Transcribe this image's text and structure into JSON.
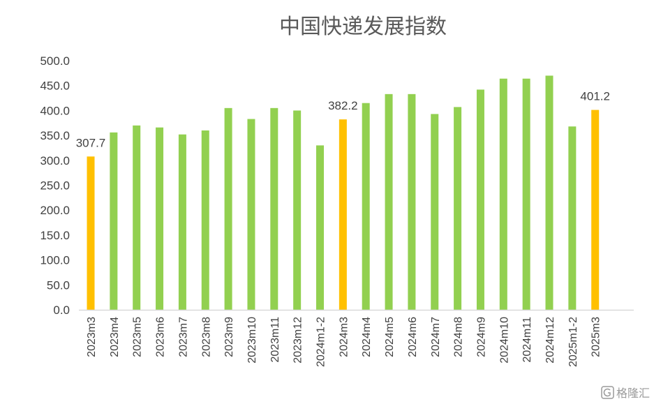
{
  "chart_data": {
    "type": "bar",
    "title": "中国快递发展指数",
    "xlabel": "",
    "ylabel": "",
    "ylim": [
      0,
      500
    ],
    "yticks": [
      "0.0",
      "50.0",
      "100.0",
      "150.0",
      "200.0",
      "250.0",
      "300.0",
      "350.0",
      "400.0",
      "450.0",
      "500.0"
    ],
    "grid": false,
    "legend": "none",
    "categories": [
      "2023m3",
      "2023m4",
      "2023m5",
      "2023m6",
      "2023m7",
      "2023m8",
      "2023m9",
      "2023m10",
      "2023m11",
      "2023m12",
      "2024m1-2",
      "2024m3",
      "2024m4",
      "2024m5",
      "2024m6",
      "2024m7",
      "2024m8",
      "2024m9",
      "2024m10",
      "2024m11",
      "2024m12",
      "2025m1-2",
      "2025m3"
    ],
    "values": [
      307.7,
      356,
      370,
      366,
      352,
      360,
      405,
      383,
      405,
      400,
      330,
      382.2,
      415,
      433,
      433,
      393,
      407,
      442,
      464,
      464,
      470,
      368,
      401.2
    ],
    "highlight": [
      true,
      false,
      false,
      false,
      false,
      false,
      false,
      false,
      false,
      false,
      false,
      true,
      false,
      false,
      false,
      false,
      false,
      false,
      false,
      false,
      false,
      false,
      true
    ],
    "data_labels": [
      "307.7",
      "",
      "",
      "",
      "",
      "",
      "",
      "",
      "",
      "",
      "",
      "382.2",
      "",
      "",
      "",
      "",
      "",
      "",
      "",
      "",
      "",
      "",
      "401.2"
    ],
    "colors": {
      "normal": "#92d050",
      "highlight": "#ffc000",
      "axis": "#d9d9d9"
    }
  },
  "watermark": {
    "icon": "gelonghui-logo-icon",
    "text": "格隆汇"
  }
}
